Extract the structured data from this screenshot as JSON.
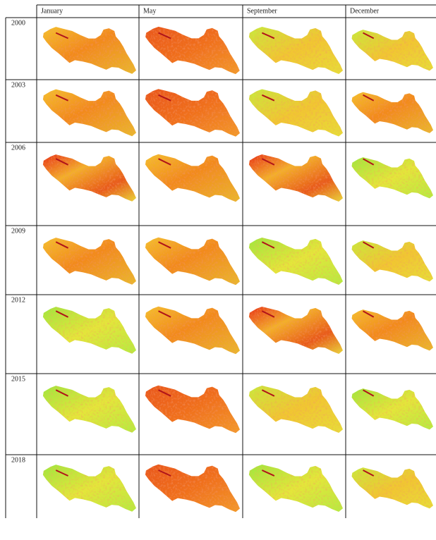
{
  "table": {
    "header": [
      "January",
      "May",
      "September",
      "December"
    ],
    "rows": [
      "2000",
      "2003",
      "2006",
      "2009",
      "2012",
      "2015",
      "2018"
    ]
  }
}
